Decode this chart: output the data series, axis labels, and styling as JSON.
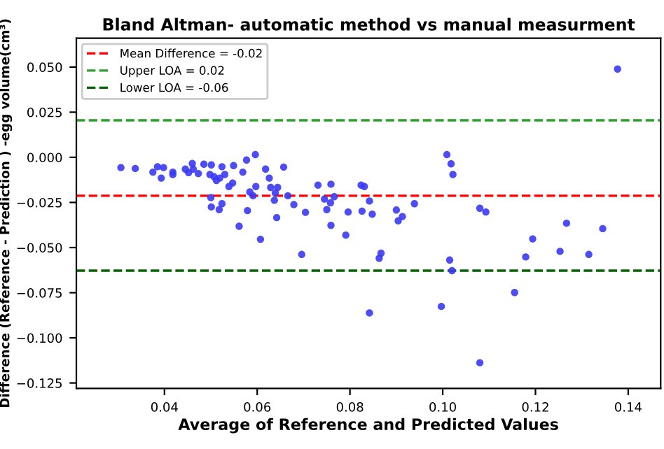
{
  "chart_data": {
    "type": "scatter",
    "title": "Bland Altman- automatic method vs manual measurment",
    "xlabel": "Average of Reference and Predicted Values",
    "ylabel": "Difference (Reference - Prediction ) -egg volume(cm³)",
    "marker": "circle",
    "legend": "top left",
    "grid": false,
    "xlim": [
      0.021,
      0.147
    ],
    "ylim": [
      -0.128,
      0.066
    ],
    "xticks": [
      {
        "value": 0.04,
        "label": "0.04"
      },
      {
        "value": 0.06,
        "label": "0.06"
      },
      {
        "value": 0.08,
        "label": "0.08"
      },
      {
        "value": 0.1,
        "label": "0.10"
      },
      {
        "value": 0.12,
        "label": "0.12"
      },
      {
        "value": 0.14,
        "label": "0.14"
      }
    ],
    "yticks": [
      {
        "value": 0.05,
        "label": "0.050"
      },
      {
        "value": 0.025,
        "label": "0.025"
      },
      {
        "value": 0,
        "label": "0.000"
      },
      {
        "value": -0.025,
        "label": "−0.025"
      },
      {
        "value": -0.05,
        "label": "−0.050"
      },
      {
        "value": -0.075,
        "label": "−0.075"
      },
      {
        "value": -0.1,
        "label": "−0.100"
      },
      {
        "value": -0.125,
        "label": "−0.125"
      }
    ],
    "ref_lines": [
      {
        "axis": "y",
        "value": -0.0213,
        "label": "Mean Difference = -0.02",
        "color": "#ff0000",
        "line_style": "dashed"
      },
      {
        "axis": "y",
        "value": 0.0205,
        "label": "Upper LOA = 0.02",
        "color": "#2ca02c",
        "line_style": "dashed"
      },
      {
        "axis": "y",
        "value": -0.0628,
        "label": "Lower LOA = -0.06",
        "color": "#006400",
        "line_style": "dashed"
      }
    ],
    "series": [
      {
        "color": "#3a3af2",
        "x": [
          0.0306,
          0.0337,
          0.0375,
          0.0385,
          0.0398,
          0.0393,
          0.0418,
          0.0418,
          0.0445,
          0.0452,
          0.046,
          0.0462,
          0.0473,
          0.0485,
          0.0501,
          0.0498,
          0.0507,
          0.0512,
          0.0524,
          0.0519,
          0.053,
          0.0539,
          0.0549,
          0.0547,
          0.0569,
          0.0577,
          0.0596,
          0.0618,
          0.0626,
          0.0629,
          0.0597,
          0.0584,
          0.0591,
          0.0644,
          0.0639,
          0.0637,
          0.0657,
          0.0666,
          0.05,
          0.0501,
          0.0524,
          0.0518,
          0.0579,
          0.0561,
          0.0607,
          0.0642,
          0.0679,
          0.0704,
          0.0731,
          0.0745,
          0.0759,
          0.0766,
          0.0758,
          0.075,
          0.0759,
          0.0796,
          0.0791,
          0.0824,
          0.0826,
          0.0696,
          0.0831,
          0.0842,
          0.0848,
          0.09,
          0.0904,
          0.0913,
          0.0939,
          0.1009,
          0.1018,
          0.1022,
          0.108,
          0.1093,
          0.0863,
          0.0867,
          0.0842,
          0.1015,
          0.102,
          0.0997,
          0.108,
          0.1155,
          0.1179,
          0.1194,
          0.1253,
          0.1267,
          0.1315,
          0.1345,
          0.1377
        ],
        "values": [
          -0.0057,
          -0.0062,
          -0.0082,
          -0.0052,
          -0.0057,
          -0.0115,
          -0.0082,
          -0.0095,
          -0.0065,
          -0.0085,
          -0.0034,
          -0.0065,
          -0.009,
          -0.0038,
          -0.0042,
          -0.0095,
          -0.0108,
          -0.0128,
          -0.0052,
          -0.0115,
          -0.0095,
          -0.0162,
          -0.0046,
          -0.0142,
          -0.0082,
          -0.0015,
          0.0015,
          -0.0065,
          -0.0115,
          -0.0167,
          -0.0162,
          -0.0192,
          -0.0213,
          -0.0167,
          -0.0198,
          -0.0238,
          -0.0054,
          -0.0213,
          -0.0223,
          -0.0275,
          -0.0257,
          -0.029,
          -0.0295,
          -0.0382,
          -0.0454,
          -0.0334,
          -0.0262,
          -0.0305,
          -0.0154,
          -0.0231,
          -0.0149,
          -0.0218,
          -0.0252,
          -0.029,
          -0.0377,
          -0.0303,
          -0.0431,
          -0.0154,
          -0.0298,
          -0.0538,
          -0.0162,
          -0.0242,
          -0.0315,
          -0.0292,
          -0.0352,
          -0.0328,
          -0.0257,
          0.0015,
          -0.0036,
          -0.0095,
          -0.0282,
          -0.0303,
          -0.0559,
          -0.0531,
          -0.0862,
          -0.0569,
          -0.0628,
          -0.0826,
          -0.1138,
          -0.0749,
          -0.0552,
          -0.0452,
          -0.0521,
          -0.0365,
          -0.0538,
          -0.0395,
          0.0489
        ]
      }
    ]
  }
}
